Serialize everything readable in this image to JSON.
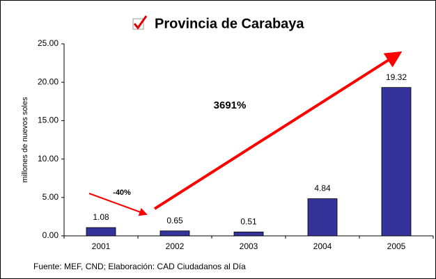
{
  "chart_data": {
    "type": "bar",
    "title": "Provincia de Carabaya",
    "ylabel": "millones de nuevos soles",
    "categories": [
      "2001",
      "2002",
      "2003",
      "2004",
      "2005"
    ],
    "values": [
      1.08,
      0.65,
      0.51,
      4.84,
      19.32
    ],
    "color": "#333399",
    "ylim": [
      0,
      25
    ],
    "yticks": [
      {
        "value": 0,
        "label": "0.00"
      },
      {
        "value": 5,
        "label": "5.00"
      },
      {
        "value": 10,
        "label": "10.00"
      },
      {
        "value": 15,
        "label": "15.00"
      },
      {
        "value": 20,
        "label": "20.00"
      },
      {
        "value": 25,
        "label": "25.00"
      }
    ],
    "annotations": [
      "-40%",
      "3691%"
    ],
    "source": "Fuente: MEF, CND; Elaboración: CAD Ciudadanos al Día"
  }
}
